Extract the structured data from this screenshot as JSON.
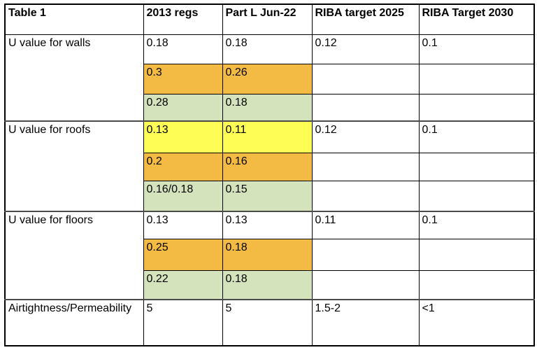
{
  "colors": {
    "orange": "#F3BB44",
    "green": "#D5E3BD",
    "yellow": "#FDFD55"
  },
  "table": {
    "headers": [
      "Table 1",
      "2013 regs",
      "Part L Jun-22",
      "RIBA target 2025",
      "RIBA Target 2030"
    ],
    "groups": [
      {
        "label": "U value for walls",
        "rows": [
          {
            "cells": [
              "0.18",
              "0.18",
              "0.12",
              "0.1"
            ],
            "hl": [
              "",
              "",
              "",
              ""
            ]
          },
          {
            "cells": [
              "0.3",
              "0.26",
              "",
              ""
            ],
            "hl": [
              "orange",
              "orange",
              "",
              ""
            ]
          },
          {
            "cells": [
              "0.28",
              "0.18",
              "",
              ""
            ],
            "hl": [
              "green",
              "green",
              "",
              ""
            ]
          }
        ]
      },
      {
        "label": "U value for roofs",
        "rows": [
          {
            "cells": [
              "0.13",
              "0.11",
              "0.12",
              "0.1"
            ],
            "hl": [
              "yellow",
              "yellow",
              "",
              ""
            ]
          },
          {
            "cells": [
              "0.2",
              "0.16",
              "",
              ""
            ],
            "hl": [
              "orange",
              "orange",
              "",
              ""
            ]
          },
          {
            "cells": [
              "0.16/0.18",
              "0.15",
              "",
              ""
            ],
            "hl": [
              "green",
              "green",
              "",
              ""
            ]
          }
        ]
      },
      {
        "label": "U value for floors",
        "rows": [
          {
            "cells": [
              "0.13",
              "0.13",
              "0.11",
              "0.1"
            ],
            "hl": [
              "",
              "",
              "",
              ""
            ]
          },
          {
            "cells": [
              "0.25",
              "0.18",
              "",
              ""
            ],
            "hl": [
              "orange",
              "orange",
              "",
              ""
            ]
          },
          {
            "cells": [
              "0.22",
              "0.18",
              "",
              ""
            ],
            "hl": [
              "green",
              "green",
              "",
              ""
            ]
          }
        ]
      }
    ],
    "footer": {
      "label": "Airtightness/Permeability",
      "cells": [
        "5",
        "5",
        "1.5-2",
        "<1"
      ]
    }
  }
}
